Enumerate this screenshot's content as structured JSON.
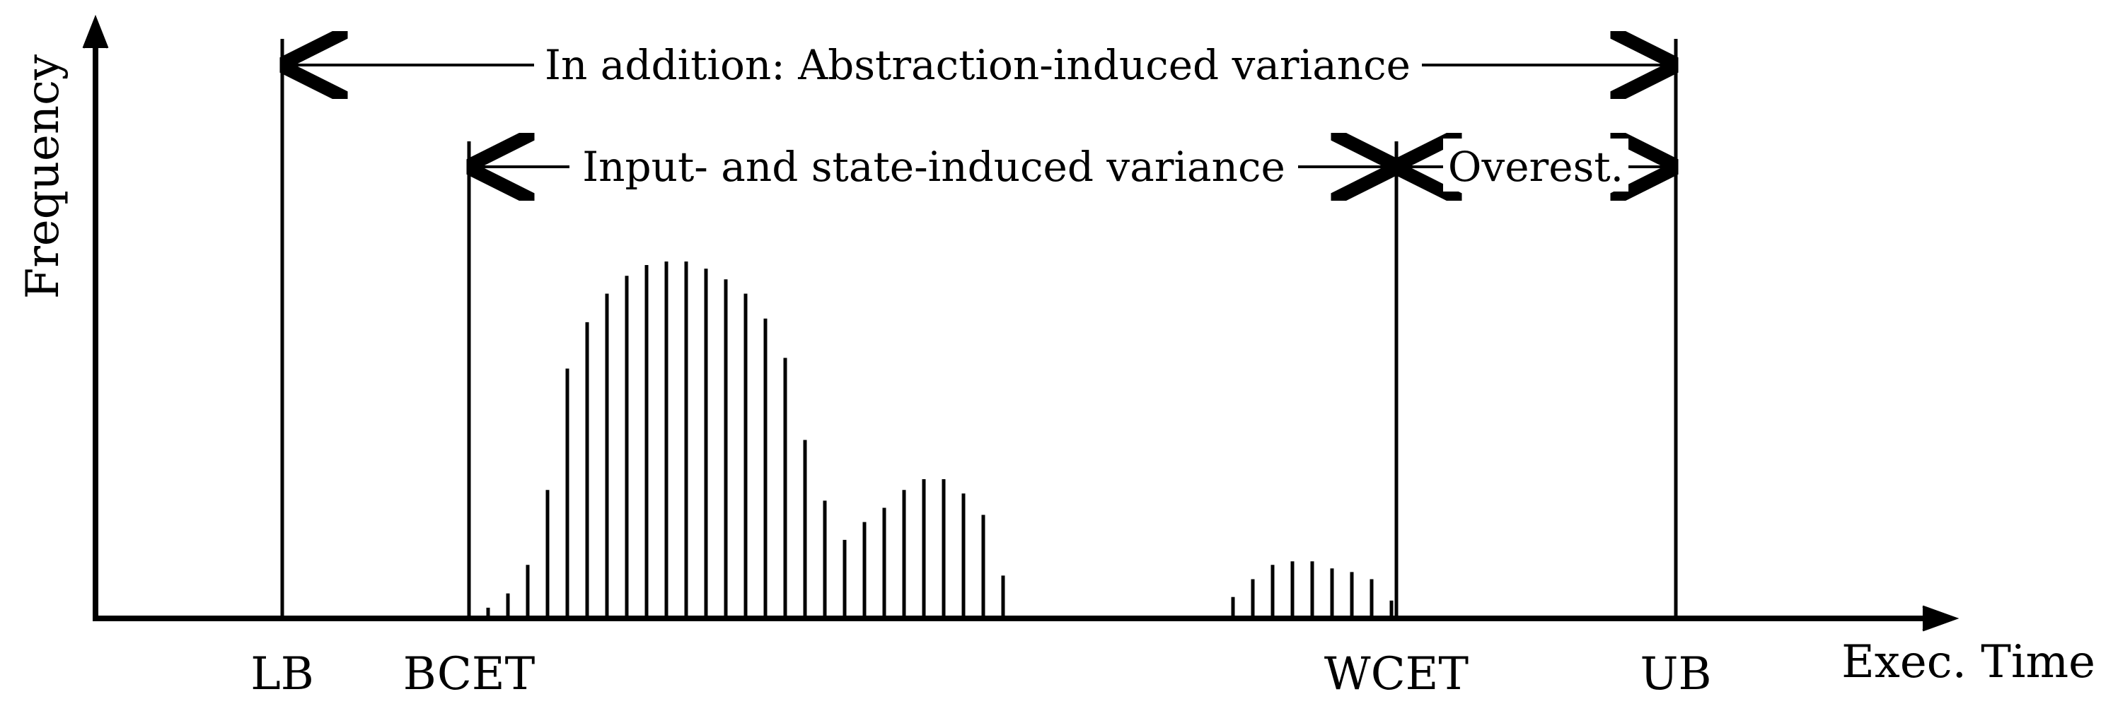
{
  "axes": {
    "y_label": "Frequency",
    "x_label": "Exec. Time"
  },
  "markers": [
    {
      "id": "lb",
      "label": "LB"
    },
    {
      "id": "bcet",
      "label": "BCET"
    },
    {
      "id": "wcet",
      "label": "WCET"
    },
    {
      "id": "ub",
      "label": "UB"
    }
  ],
  "spans": {
    "abstraction": "In addition: Abstraction-induced variance",
    "input_state": "Input- and state-induced variance",
    "overest": "Overest."
  },
  "chart_data": {
    "type": "bar",
    "xlabel": "Exec. Time",
    "ylabel": "Frequency",
    "frequencies": [
      0.03,
      0.07,
      0.15,
      0.36,
      0.7,
      0.83,
      0.91,
      0.96,
      0.99,
      1.0,
      1.0,
      0.98,
      0.95,
      0.91,
      0.84,
      0.73,
      0.5,
      0.33,
      0.22,
      0.27,
      0.31,
      0.36,
      0.39,
      0.39,
      0.35,
      0.29,
      0.12,
      0.06,
      0.11,
      0.15,
      0.16,
      0.16,
      0.14,
      0.13,
      0.11,
      0.05
    ]
  }
}
